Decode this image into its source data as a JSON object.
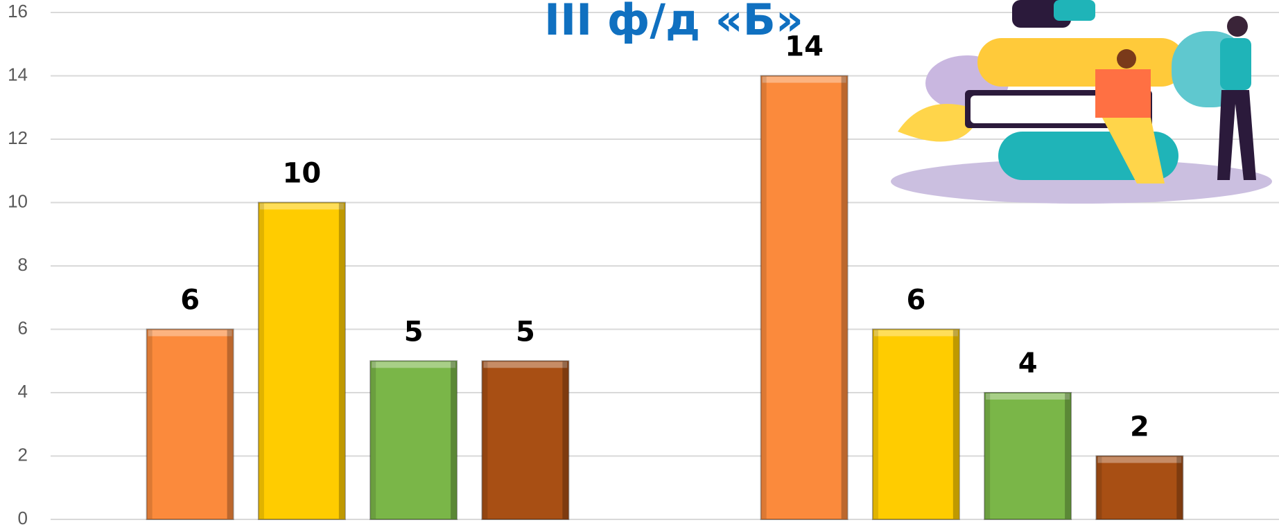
{
  "chart_data": {
    "type": "bar",
    "title": "III ф/д «Б»",
    "categories": [
      null,
      null
    ],
    "series": [
      {
        "color": "#fb8a3c",
        "values": [
          6,
          14
        ]
      },
      {
        "color": "#ffcc00",
        "values": [
          10,
          6
        ]
      },
      {
        "color": "#7ab648",
        "values": [
          5,
          4
        ]
      },
      {
        "color": "#a84f14",
        "values": [
          5,
          2
        ]
      }
    ],
    "ylim": [
      0,
      16
    ],
    "yticks": [
      0,
      2,
      4,
      6,
      8,
      10,
      12,
      14,
      16
    ],
    "grid": true
  }
}
